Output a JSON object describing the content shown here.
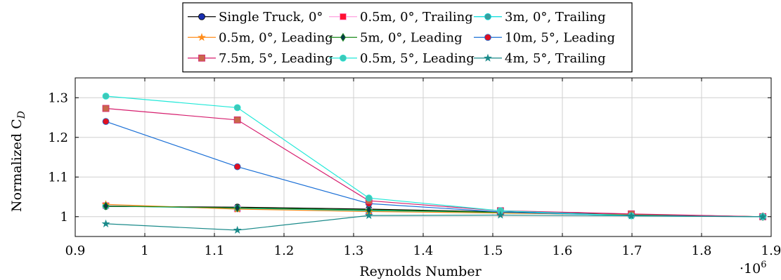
{
  "chart_data": {
    "type": "line",
    "title": "",
    "xlabel": "Reynolds Number",
    "ylabel": "Normalized C",
    "ylabel_subscript": "D",
    "x_multiplier_label": "·10",
    "x_multiplier_exponent": "6",
    "xlim": [
      0.9,
      1.9
    ],
    "ylim": [
      0.95,
      1.35
    ],
    "x_ticks": [
      0.9,
      1.0,
      1.1,
      1.2,
      1.3,
      1.4,
      1.5,
      1.6,
      1.7,
      1.8,
      1.9
    ],
    "x_tick_labels": [
      "0.9",
      "1",
      "1.1",
      "1.2",
      "1.3",
      "1.4",
      "1.5",
      "1.6",
      "1.7",
      "1.8",
      "1.9"
    ],
    "y_ticks": [
      1.0,
      1.1,
      1.2,
      1.3
    ],
    "y_tick_labels": [
      "1",
      "1.1",
      "1.2",
      "1.3"
    ],
    "grid": true,
    "legend_position": "top-center",
    "x": [
      0.944,
      1.133,
      1.322,
      1.511,
      1.699,
      1.888
    ],
    "series": [
      {
        "name": "Single Truck, 0°",
        "color": "#000000",
        "marker": "circle",
        "markerFill": "#1a2fb0",
        "values": [
          1.026,
          1.024,
          1.019,
          1.012,
          1.006,
          1.0
        ]
      },
      {
        "name": "0.5m, 0°, Trailing",
        "color": "#ff9fdf",
        "marker": "square",
        "markerFill": "#ff1030",
        "values": [
          1.028,
          1.02,
          1.014,
          1.01,
          1.005,
          1.0
        ]
      },
      {
        "name": "3m, 0°, Trailing",
        "color": "#00dcdc",
        "marker": "circle",
        "markerFill": "#3a9e9e",
        "values": [
          1.027,
          1.021,
          1.015,
          1.01,
          1.004,
          1.0
        ]
      },
      {
        "name": "0.5m, 0°, Leading",
        "color": "#ff8c1a",
        "marker": "star",
        "markerFill": "#ff8c1a",
        "values": [
          1.031,
          1.019,
          1.013,
          1.009,
          1.005,
          1.0
        ]
      },
      {
        "name": "5m, 0°, Leading",
        "color": "#1a8a1a",
        "marker": "diamond",
        "markerFill": "#0a3a4a",
        "values": [
          1.027,
          1.022,
          1.017,
          1.011,
          1.004,
          1.0
        ]
      },
      {
        "name": "10m, 5°, Leading",
        "color": "#1a6fd6",
        "marker": "circle",
        "markerFill": "#e01020",
        "values": [
          1.24,
          1.126,
          1.033,
          1.012,
          1.003,
          1.0
        ]
      },
      {
        "name": "7.5m, 5°, Leading",
        "color": "#d61e6e",
        "marker": "square",
        "markerFill": "#c8684a",
        "values": [
          1.273,
          1.244,
          1.04,
          1.015,
          1.007,
          1.0
        ]
      },
      {
        "name": "0.5m, 5°, Leading",
        "color": "#20e8d8",
        "marker": "circle",
        "markerFill": "#3ec8b8",
        "values": [
          1.304,
          1.275,
          1.047,
          1.015,
          1.002,
          1.0
        ]
      },
      {
        "name": "4m, 5°, Trailing",
        "color": "#1a8a8a",
        "marker": "star",
        "markerFill": "#1a8a8a",
        "values": [
          0.982,
          0.966,
          1.003,
          1.004,
          1.002,
          1.0
        ]
      }
    ]
  }
}
